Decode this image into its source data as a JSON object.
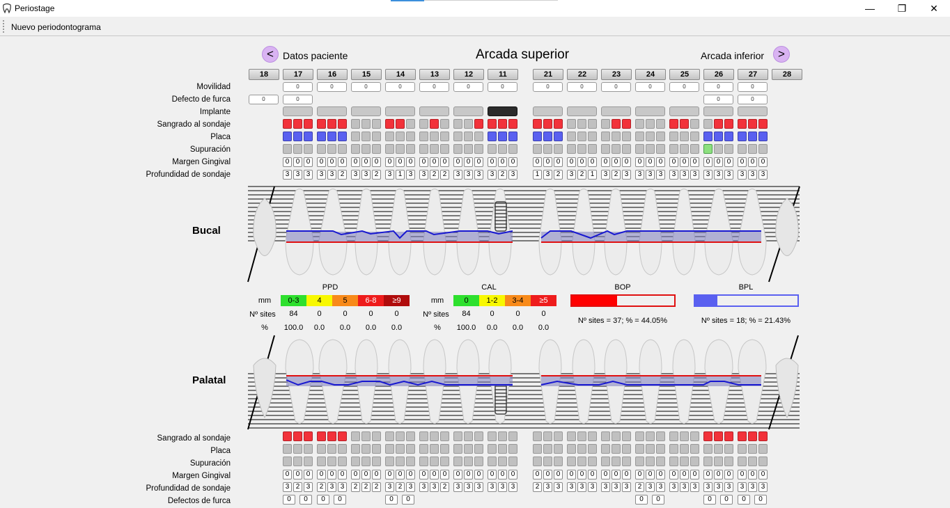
{
  "window": {
    "title": "Periostage",
    "minimize": "—",
    "maximize": "❐",
    "close": "✕"
  },
  "menu": {
    "new": "Nuevo periodontograma"
  },
  "nav": {
    "prev": "<",
    "prev_label": "Datos paciente",
    "title": "Arcada superior",
    "next_label": "Arcada inferior",
    "next": ">"
  },
  "teeth": [
    "18",
    "17",
    "16",
    "15",
    "14",
    "13",
    "12",
    "11",
    "21",
    "22",
    "23",
    "24",
    "25",
    "26",
    "27",
    "28"
  ],
  "labels_top": [
    "Movilidad",
    "Defecto de furca",
    "Implante",
    "Sangrado al sondaje",
    "Placa",
    "Supuración",
    "Margen Gingival",
    "Profundidad de sondaje"
  ],
  "labels_bottom": [
    "Sangrado al sondaje",
    "Placa",
    "Supuración",
    "Margen Gingival",
    "Profundidad de sondaje",
    "Defectos de furca"
  ],
  "views": {
    "buccal": "Bucal",
    "palatal": "Palatal"
  },
  "mobility": [
    "",
    "0",
    "0",
    "0",
    "0",
    "0",
    "0",
    "0",
    "0",
    "0",
    "0",
    "0",
    "0",
    "0",
    "0",
    ""
  ],
  "furca_top": [
    [
      "0"
    ],
    [
      "0"
    ],
    [],
    [],
    [],
    [],
    [],
    [],
    [],
    [],
    [],
    [],
    [],
    [
      "0"
    ],
    [
      "0"
    ],
    []
  ],
  "implant": [
    0,
    1,
    1,
    1,
    1,
    1,
    1,
    2,
    1,
    1,
    1,
    1,
    1,
    1,
    1,
    0
  ],
  "bop_buccal": [
    null,
    [
      "r",
      "r",
      "r"
    ],
    [
      "r",
      "r",
      "r"
    ],
    [
      "g",
      "g",
      "g"
    ],
    [
      "r",
      "r",
      "g"
    ],
    [
      "g",
      "r",
      "g"
    ],
    [
      "g",
      "g",
      "r"
    ],
    [
      "r",
      "r",
      "r"
    ],
    [
      "r",
      "r",
      "r"
    ],
    [
      "g",
      "g",
      "g"
    ],
    [
      "g",
      "r",
      "r"
    ],
    [
      "g",
      "g",
      "g"
    ],
    [
      "r",
      "r",
      "g"
    ],
    [
      "g",
      "r",
      "r"
    ],
    [
      "r",
      "r",
      "r"
    ],
    null
  ],
  "plaque_buccal": [
    null,
    [
      "b",
      "b",
      "b"
    ],
    [
      "b",
      "b",
      "b"
    ],
    [
      "g",
      "g",
      "g"
    ],
    [
      "g",
      "g",
      "g"
    ],
    [
      "g",
      "g",
      "g"
    ],
    [
      "g",
      "g",
      "g"
    ],
    [
      "b",
      "b",
      "b"
    ],
    [
      "b",
      "b",
      "b"
    ],
    [
      "g",
      "g",
      "g"
    ],
    [
      "g",
      "g",
      "g"
    ],
    [
      "g",
      "g",
      "g"
    ],
    [
      "g",
      "g",
      "g"
    ],
    [
      "b",
      "b",
      "b"
    ],
    [
      "b",
      "b",
      "b"
    ],
    null
  ],
  "supp_buccal": [
    null,
    [
      "g",
      "g",
      "g"
    ],
    [
      "g",
      "g",
      "g"
    ],
    [
      "g",
      "g",
      "g"
    ],
    [
      "g",
      "g",
      "g"
    ],
    [
      "g",
      "g",
      "g"
    ],
    [
      "g",
      "g",
      "g"
    ],
    [
      "g",
      "g",
      "g"
    ],
    [
      "g",
      "g",
      "g"
    ],
    [
      "g",
      "g",
      "g"
    ],
    [
      "g",
      "g",
      "g"
    ],
    [
      "g",
      "g",
      "g"
    ],
    [
      "g",
      "g",
      "g"
    ],
    [
      "n",
      "g",
      "g"
    ],
    [
      "g",
      "g",
      "g"
    ],
    null
  ],
  "gm_buccal": [
    null,
    [
      "0",
      "0",
      "0"
    ],
    [
      "0",
      "0",
      "0"
    ],
    [
      "0",
      "0",
      "0"
    ],
    [
      "0",
      "0",
      "0"
    ],
    [
      "0",
      "0",
      "0"
    ],
    [
      "0",
      "0",
      "0"
    ],
    [
      "0",
      "0",
      "0"
    ],
    [
      "0",
      "0",
      "0"
    ],
    [
      "0",
      "0",
      "0"
    ],
    [
      "0",
      "0",
      "0"
    ],
    [
      "0",
      "0",
      "0"
    ],
    [
      "0",
      "0",
      "0"
    ],
    [
      "0",
      "0",
      "0"
    ],
    [
      "0",
      "0",
      "0"
    ],
    null
  ],
  "pd_buccal": [
    null,
    [
      "3",
      "3",
      "3"
    ],
    [
      "3",
      "3",
      "2"
    ],
    [
      "3",
      "3",
      "2"
    ],
    [
      "3",
      "1",
      "3"
    ],
    [
      "3",
      "2",
      "2"
    ],
    [
      "3",
      "3",
      "3"
    ],
    [
      "3",
      "2",
      "3"
    ],
    [
      "1",
      "3",
      "2"
    ],
    [
      "3",
      "2",
      "1"
    ],
    [
      "3",
      "2",
      "3"
    ],
    [
      "3",
      "3",
      "3"
    ],
    [
      "3",
      "3",
      "3"
    ],
    [
      "3",
      "3",
      "3"
    ],
    [
      "3",
      "3",
      "3"
    ],
    null
  ],
  "stats": {
    "ppd_title": "PPD",
    "cal_title": "CAL",
    "bop_title": "BOP",
    "bpl_title": "BPL",
    "mm": "mm",
    "sites_label": "Nº sites",
    "pct_label": "%",
    "ppd_ranges": [
      "0-3",
      "4",
      "5",
      "6-8",
      "≥9"
    ],
    "ppd_sites": [
      "84",
      "0",
      "0",
      "0",
      "0"
    ],
    "ppd_pct": [
      "100.0",
      "0.0",
      "0.0",
      "0.0",
      "0.0"
    ],
    "cal_ranges": [
      "0",
      "1-2",
      "3-4",
      "≥5"
    ],
    "cal_sites": [
      "84",
      "0",
      "0",
      "0"
    ],
    "cal_pct": [
      "100.0",
      "0.0",
      "0.0",
      "0.0"
    ],
    "bop_text": "Nº sites = 37; % = 44.05%",
    "bpl_text": "Nº sites = 18; % = 21.43%",
    "bop_pct": 44.05,
    "bpl_pct": 21.43
  },
  "bop_palatal": [
    null,
    [
      "r",
      "r",
      "r"
    ],
    [
      "r",
      "r",
      "r"
    ],
    [
      "g",
      "g",
      "g"
    ],
    [
      "g",
      "g",
      "g"
    ],
    [
      "g",
      "g",
      "g"
    ],
    [
      "g",
      "g",
      "g"
    ],
    [
      "g",
      "g",
      "g"
    ],
    [
      "g",
      "g",
      "g"
    ],
    [
      "g",
      "g",
      "g"
    ],
    [
      "g",
      "g",
      "g"
    ],
    [
      "g",
      "g",
      "g"
    ],
    [
      "g",
      "g",
      "g"
    ],
    [
      "r",
      "r",
      "r"
    ],
    [
      "r",
      "r",
      "r"
    ],
    null
  ],
  "plaque_palatal": [
    null,
    [
      "g",
      "g",
      "g"
    ],
    [
      "g",
      "g",
      "g"
    ],
    [
      "g",
      "g",
      "g"
    ],
    [
      "g",
      "g",
      "g"
    ],
    [
      "g",
      "g",
      "g"
    ],
    [
      "g",
      "g",
      "g"
    ],
    [
      "g",
      "g",
      "g"
    ],
    [
      "g",
      "g",
      "g"
    ],
    [
      "g",
      "g",
      "g"
    ],
    [
      "g",
      "g",
      "g"
    ],
    [
      "g",
      "g",
      "g"
    ],
    [
      "g",
      "g",
      "g"
    ],
    [
      "g",
      "g",
      "g"
    ],
    [
      "g",
      "g",
      "g"
    ],
    null
  ],
  "supp_palatal": [
    null,
    [
      "g",
      "g",
      "g"
    ],
    [
      "g",
      "g",
      "g"
    ],
    [
      "g",
      "g",
      "g"
    ],
    [
      "g",
      "g",
      "g"
    ],
    [
      "g",
      "g",
      "g"
    ],
    [
      "g",
      "g",
      "g"
    ],
    [
      "g",
      "g",
      "g"
    ],
    [
      "g",
      "g",
      "g"
    ],
    [
      "g",
      "g",
      "g"
    ],
    [
      "g",
      "g",
      "g"
    ],
    [
      "g",
      "g",
      "g"
    ],
    [
      "g",
      "g",
      "g"
    ],
    [
      "g",
      "g",
      "g"
    ],
    [
      "g",
      "g",
      "g"
    ],
    null
  ],
  "gm_palatal": [
    null,
    [
      "0",
      "0",
      "0"
    ],
    [
      "0",
      "0",
      "0"
    ],
    [
      "0",
      "0",
      "0"
    ],
    [
      "0",
      "0",
      "0"
    ],
    [
      "0",
      "0",
      "0"
    ],
    [
      "0",
      "0",
      "0"
    ],
    [
      "0",
      "0",
      "0"
    ],
    [
      "0",
      "0",
      "0"
    ],
    [
      "0",
      "0",
      "0"
    ],
    [
      "0",
      "0",
      "0"
    ],
    [
      "0",
      "0",
      "0"
    ],
    [
      "0",
      "0",
      "0"
    ],
    [
      "0",
      "0",
      "0"
    ],
    [
      "0",
      "0",
      "0"
    ],
    null
  ],
  "pd_palatal": [
    null,
    [
      "3",
      "2",
      "3"
    ],
    [
      "2",
      "3",
      "3"
    ],
    [
      "2",
      "2",
      "2"
    ],
    [
      "3",
      "2",
      "3"
    ],
    [
      "3",
      "3",
      "2"
    ],
    [
      "3",
      "3",
      "3"
    ],
    [
      "3",
      "3",
      "3"
    ],
    [
      "2",
      "3",
      "3"
    ],
    [
      "3",
      "3",
      "3"
    ],
    [
      "3",
      "3",
      "3"
    ],
    [
      "2",
      "3",
      "3"
    ],
    [
      "3",
      "3",
      "3"
    ],
    [
      "3",
      "3",
      "3"
    ],
    [
      "3",
      "3",
      "3"
    ],
    null
  ],
  "furca_bottom": [
    [],
    [
      "0",
      "0"
    ],
    [
      "0",
      "0"
    ],
    [],
    [
      "0",
      "0"
    ],
    [],
    [],
    [],
    [],
    [],
    [],
    [
      "0",
      "0"
    ],
    [],
    [
      "0",
      "0"
    ],
    [
      "0",
      "0"
    ],
    []
  ]
}
